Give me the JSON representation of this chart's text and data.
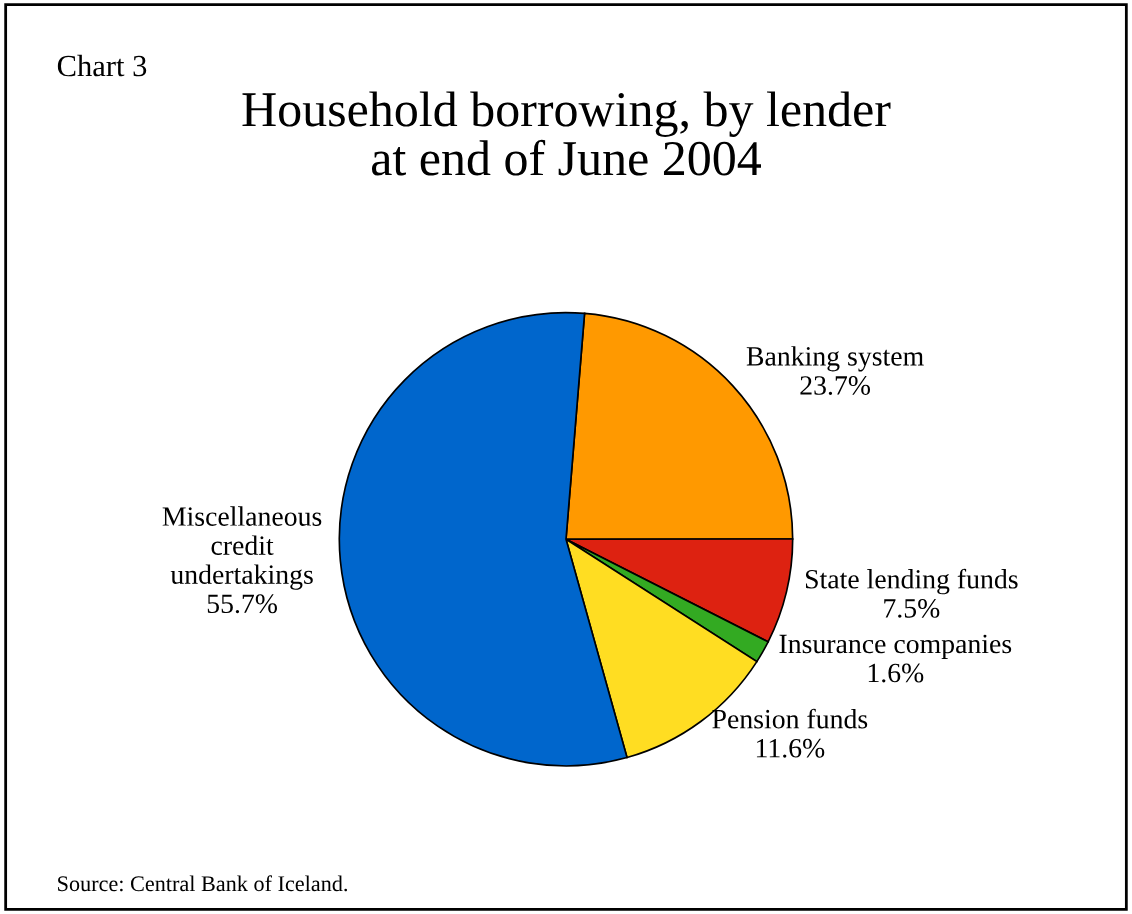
{
  "chart_data": {
    "type": "pie",
    "title": "Household borrowing, by lender\nat end of June 2004",
    "categories": [
      "Banking system",
      "State lending funds",
      "Insurance companies",
      "Pension funds",
      "Miscellaneous\ncredit\nundertakings"
    ],
    "values": [
      23.7,
      7.5,
      1.6,
      11.6,
      55.7
    ],
    "value_labels": [
      "23.7%",
      "7.5%",
      "1.6%",
      "11.6%",
      "55.7%"
    ],
    "colors": [
      "#ff9900",
      "#dd2211",
      "#33aa22",
      "#ffdd22",
      "#0066cc"
    ],
    "annotations": [
      "Chart 3",
      "Source: Central Bank of Iceland."
    ]
  }
}
